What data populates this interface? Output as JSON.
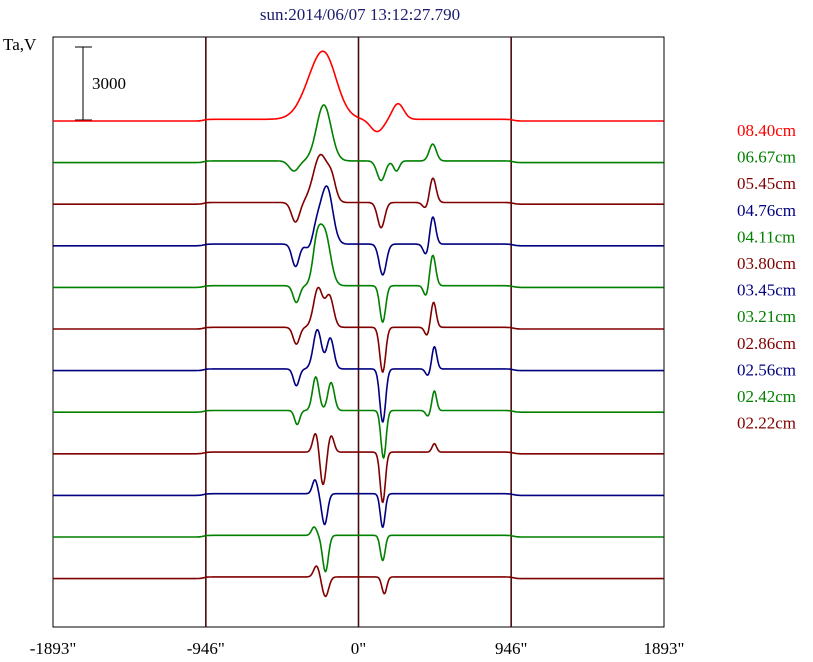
{
  "chart_data": {
    "type": "line",
    "title": "sun:2014/06/07 13:12:27.790",
    "ylabel": "Ta,V",
    "scale_bar_label": "3000",
    "x_ticks": [
      {
        "value": -1893,
        "label": "-1893\""
      },
      {
        "value": -946,
        "label": "-946\""
      },
      {
        "value": 0,
        "label": "0\""
      },
      {
        "value": 946,
        "label": "946\""
      },
      {
        "value": 1893,
        "label": "1893\""
      }
    ],
    "xlim": [
      -1893,
      1893
    ],
    "vertical_gridlines": [
      -946,
      0,
      946
    ],
    "series": [
      {
        "name": "08.40cm",
        "color": "#ff0000",
        "features": [
          [
            -235,
            1.0,
            90
          ],
          [
            -195,
            0.25,
            60
          ],
          [
            115,
            -0.22,
            40
          ],
          [
            245,
            0.28,
            35
          ]
        ]
      },
      {
        "name": "06.67cm",
        "color": "#008000",
        "features": [
          [
            -215,
            1.0,
            45
          ],
          [
            -400,
            -0.18,
            30
          ],
          [
            140,
            -0.35,
            25
          ],
          [
            235,
            -0.18,
            18
          ],
          [
            460,
            0.3,
            22
          ]
        ]
      },
      {
        "name": "05.45cm",
        "color": "#800000",
        "features": [
          [
            -235,
            0.85,
            45
          ],
          [
            -390,
            -0.35,
            25
          ],
          [
            -165,
            0.3,
            25
          ],
          [
            140,
            -0.45,
            22
          ],
          [
            460,
            0.45,
            20
          ],
          [
            420,
            -0.12,
            20
          ]
        ]
      },
      {
        "name": "04.76cm",
        "color": "#000080",
        "features": [
          [
            -195,
            1.0,
            35
          ],
          [
            -260,
            0.35,
            30
          ],
          [
            -390,
            -0.4,
            22
          ],
          [
            -300,
            -0.15,
            25
          ],
          [
            150,
            -0.55,
            22
          ],
          [
            460,
            0.5,
            18
          ],
          [
            420,
            -0.2,
            18
          ]
        ]
      },
      {
        "name": "04.11cm",
        "color": "#008000",
        "features": [
          [
            -210,
            0.95,
            35
          ],
          [
            -260,
            0.6,
            25
          ],
          [
            -385,
            -0.3,
            20
          ],
          [
            150,
            -0.65,
            18
          ],
          [
            460,
            0.55,
            18
          ],
          [
            420,
            -0.2,
            16
          ]
        ]
      },
      {
        "name": "03.80cm",
        "color": "#800000",
        "features": [
          [
            -250,
            0.7,
            28
          ],
          [
            -180,
            0.55,
            25
          ],
          [
            -385,
            -0.3,
            20
          ],
          [
            150,
            -0.8,
            18
          ],
          [
            465,
            0.45,
            16
          ],
          [
            425,
            -0.15,
            15
          ]
        ]
      },
      {
        "name": "03.45cm",
        "color": "#000080",
        "features": [
          [
            -255,
            0.7,
            25
          ],
          [
            -175,
            0.55,
            22
          ],
          [
            -385,
            -0.3,
            18
          ],
          [
            150,
            -0.95,
            18
          ],
          [
            470,
            0.4,
            15
          ],
          [
            430,
            -0.12,
            15
          ]
        ]
      },
      {
        "name": "03.21cm",
        "color": "#008000",
        "features": [
          [
            -265,
            0.6,
            20
          ],
          [
            -170,
            0.5,
            20
          ],
          [
            -380,
            -0.25,
            16
          ],
          [
            155,
            -0.85,
            16
          ],
          [
            470,
            0.35,
            14
          ],
          [
            430,
            -0.1,
            14
          ]
        ]
      },
      {
        "name": "02.86cm",
        "color": "#800000",
        "features": [
          [
            -265,
            0.35,
            18
          ],
          [
            -170,
            0.3,
            18
          ],
          [
            -220,
            -0.6,
            18
          ],
          [
            150,
            -0.9,
            16
          ],
          [
            470,
            0.15,
            14
          ]
        ]
      },
      {
        "name": "02.56cm",
        "color": "#000080",
        "features": [
          [
            -270,
            0.25,
            16
          ],
          [
            -210,
            -0.55,
            18
          ],
          [
            150,
            -0.6,
            15
          ]
        ]
      },
      {
        "name": "02.42cm",
        "color": "#008000",
        "features": [
          [
            -275,
            0.15,
            16
          ],
          [
            -205,
            -0.65,
            18
          ],
          [
            150,
            -0.45,
            15
          ]
        ]
      },
      {
        "name": "02.22cm",
        "color": "#800000",
        "features": [
          [
            -260,
            0.2,
            18
          ],
          [
            -205,
            -0.35,
            20
          ],
          [
            160,
            -0.3,
            15
          ]
        ]
      }
    ]
  }
}
